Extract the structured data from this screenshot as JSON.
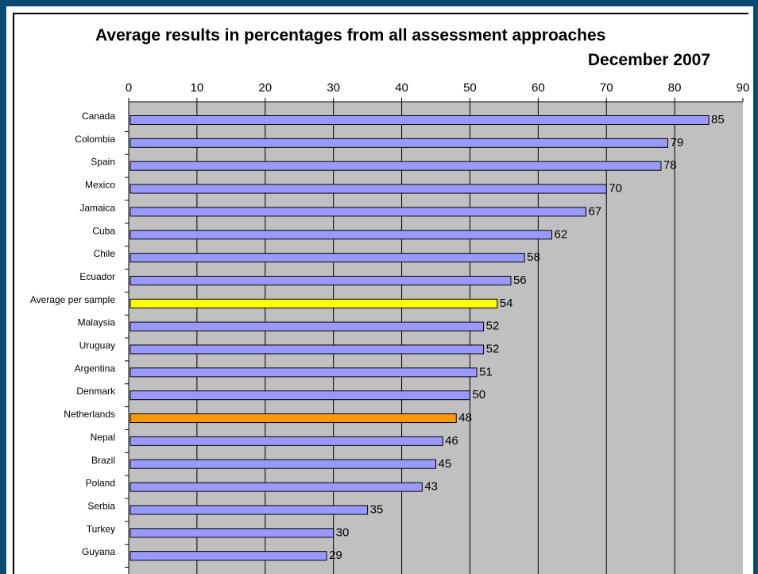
{
  "chart_data": {
    "type": "bar",
    "orientation": "horizontal",
    "title": "Average results in percentages from all assessment approaches",
    "subtitle": "December 2007",
    "xlim": [
      0,
      90
    ],
    "x_ticks": [
      0,
      10,
      20,
      30,
      40,
      50,
      60,
      70,
      80,
      90
    ],
    "x_axis_position": "top",
    "grid": true,
    "plot_background": "#c0c0c0",
    "default_bar_color": "#9999ff",
    "categories": [
      "Canada",
      "Colombia",
      "Spain",
      "Mexico",
      "Jamaica",
      "Cuba",
      "Chile",
      "Ecuador",
      "Average per sample",
      "Malaysia",
      "Uruguay",
      "Argentina",
      "Denmark",
      "Netherlands",
      "Nepal",
      "Brazil",
      "Poland",
      "Serbia",
      "Turkey",
      "Guyana"
    ],
    "values": [
      85,
      79,
      78,
      70,
      67,
      62,
      58,
      56,
      54,
      52,
      52,
      51,
      50,
      48,
      46,
      45,
      43,
      35,
      30,
      29
    ],
    "highlight_colors": {
      "Average per sample": "#ffff00",
      "Netherlands": "#ff9900"
    }
  }
}
